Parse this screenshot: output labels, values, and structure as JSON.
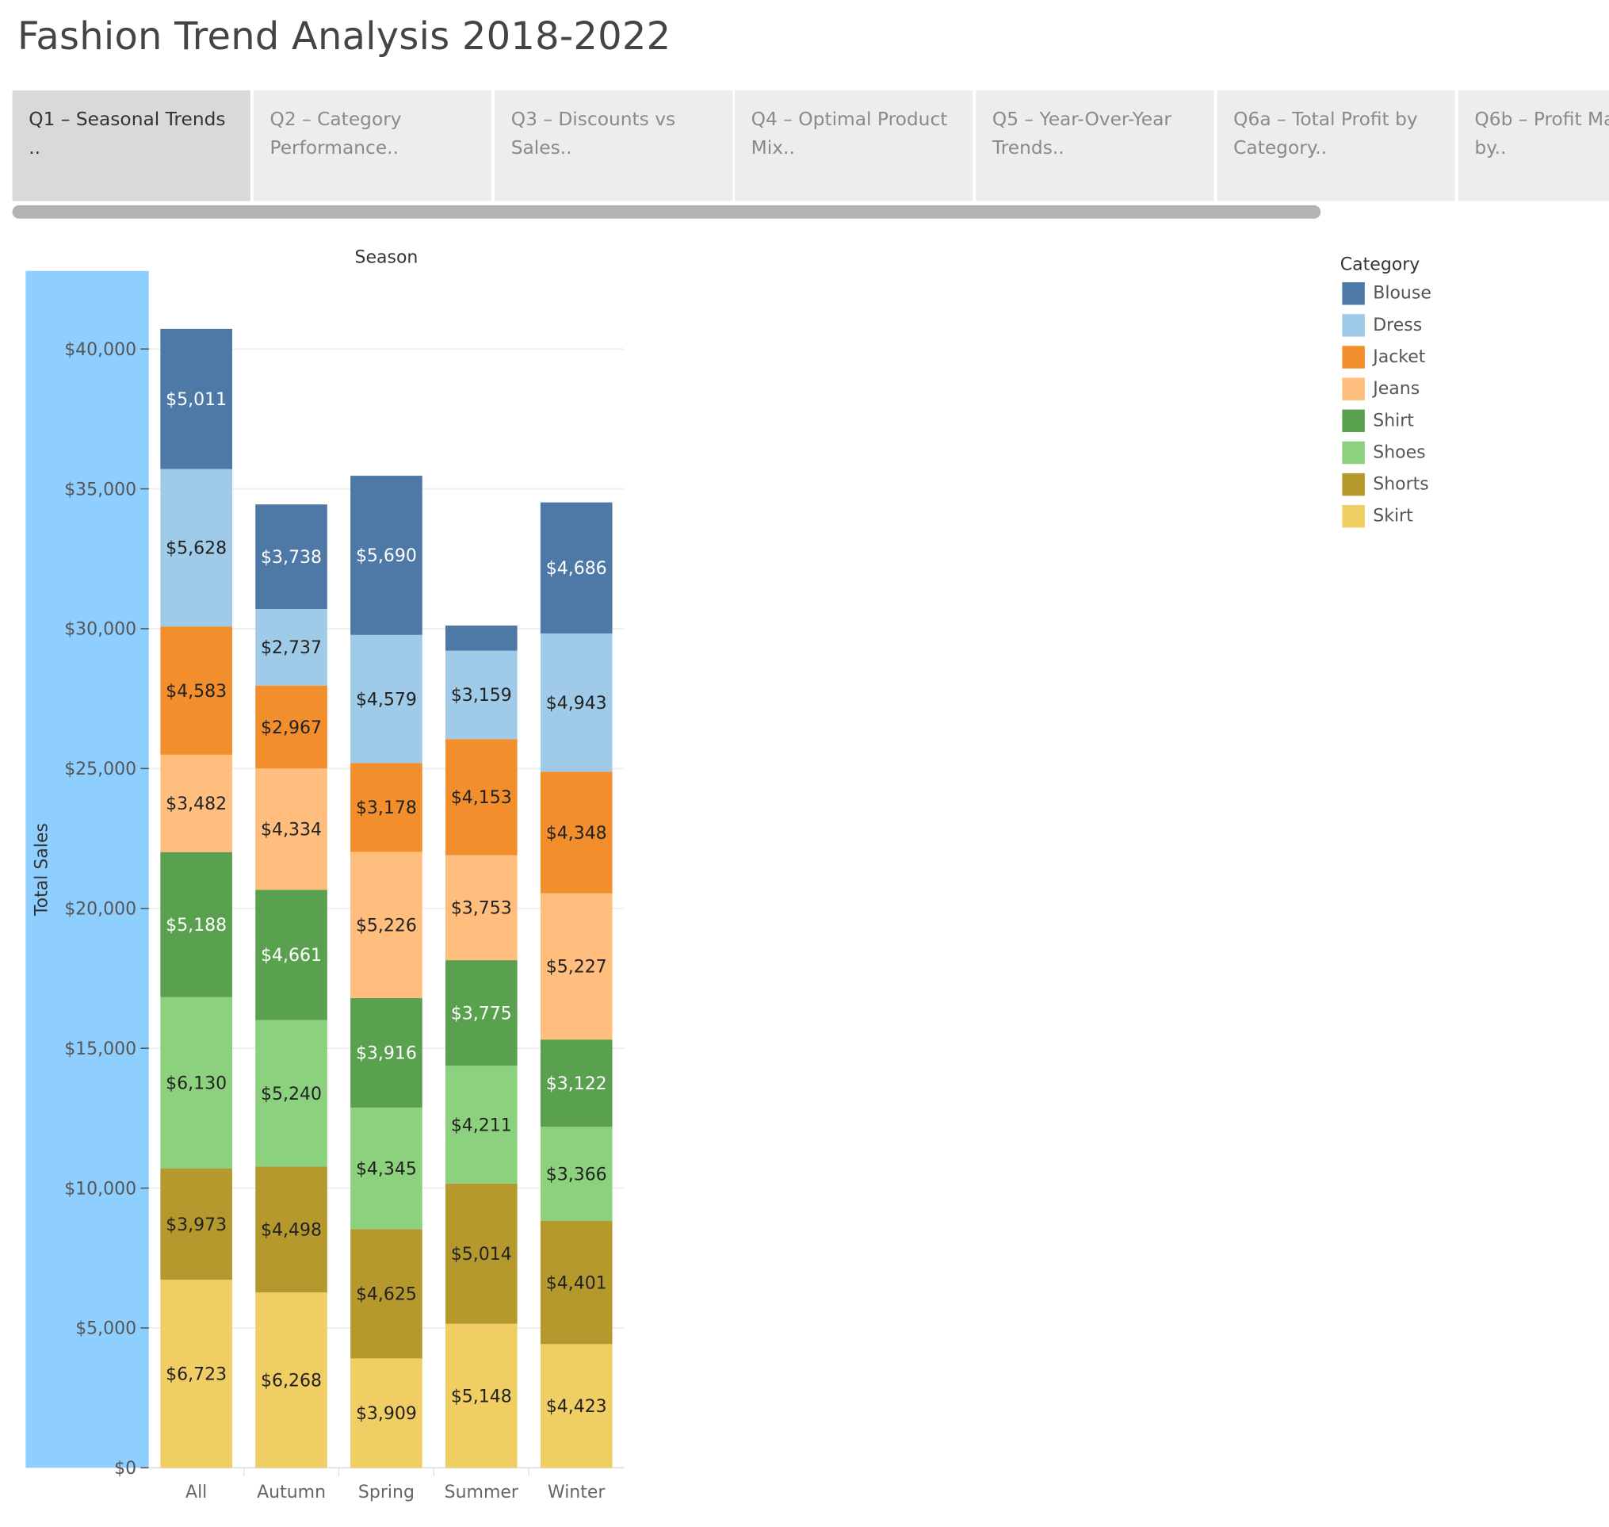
{
  "dashboard": {
    "title": "Fashion Trend Analysis 2018-2022"
  },
  "tabs": [
    {
      "label": "Q1 – Seasonal Trends ..",
      "active": true
    },
    {
      "label": "Q2 – Category Performance..",
      "active": false
    },
    {
      "label": "Q3 – Discounts vs Sales..",
      "active": false
    },
    {
      "label": "Q4 – Optimal Product Mix..",
      "active": false
    },
    {
      "label": "Q5 – Year-Over-Year Trends..",
      "active": false
    },
    {
      "label": "Q6a – Total Profit by Category..",
      "active": false
    },
    {
      "label": "Q6b – Profit Margin % by..",
      "active": false
    }
  ],
  "legend": {
    "title": "Category",
    "items": [
      {
        "label": "Blouse",
        "color": "#4e79a7"
      },
      {
        "label": "Dress",
        "color": "#a0cbe8"
      },
      {
        "label": "Jacket",
        "color": "#f28e2b"
      },
      {
        "label": "Jeans",
        "color": "#ffbe7d"
      },
      {
        "label": "Shirt",
        "color": "#59a14f"
      },
      {
        "label": "Shoes",
        "color": "#8cd17d"
      },
      {
        "label": "Shorts",
        "color": "#b6992d"
      },
      {
        "label": "Skirt",
        "color": "#f1ce63"
      }
    ]
  },
  "chart_data": {
    "type": "bar",
    "stacked": true,
    "title": "",
    "column_header": "Season",
    "xlabel": "",
    "ylabel": "Total Sales",
    "ylim": [
      0,
      40000
    ],
    "yticks": [
      0,
      5000,
      10000,
      15000,
      20000,
      25000,
      30000,
      35000,
      40000
    ],
    "ytick_labels": [
      "$0",
      "$5,000",
      "$10,000",
      "$15,000",
      "$20,000",
      "$25,000",
      "$30,000",
      "$35,000",
      "$40,000"
    ],
    "categories": [
      "All",
      "Autumn",
      "Spring",
      "Summer",
      "Winter"
    ],
    "series": [
      {
        "name": "Skirt",
        "color": "#f1ce63",
        "values": [
          6723,
          6268,
          3909,
          5148,
          4423
        ],
        "labels": [
          "$6,723",
          "$6,268",
          "$3,909",
          "$5,148",
          "$4,423"
        ]
      },
      {
        "name": "Shorts",
        "color": "#b6992d",
        "values": [
          3973,
          4498,
          4625,
          5014,
          4401
        ],
        "labels": [
          "$3,973",
          "$4,498",
          "$4,625",
          "$5,014",
          "$4,401"
        ]
      },
      {
        "name": "Shoes",
        "color": "#8cd17d",
        "values": [
          6130,
          5240,
          4345,
          4211,
          3366
        ],
        "labels": [
          "$6,130",
          "$5,240",
          "$4,345",
          "$4,211",
          "$3,366"
        ]
      },
      {
        "name": "Shirt",
        "color": "#59a14f",
        "values": [
          5188,
          4661,
          3916,
          3775,
          3122
        ],
        "labels": [
          "$5,188",
          "$4,661",
          "$3,916",
          "$3,775",
          "$3,122"
        ]
      },
      {
        "name": "Jeans",
        "color": "#ffbe7d",
        "values": [
          3482,
          4334,
          5226,
          3753,
          5227
        ],
        "labels": [
          "$3,482",
          "$4,334",
          "$5,226",
          "$3,753",
          "$5,227"
        ]
      },
      {
        "name": "Jacket",
        "color": "#f28e2b",
        "values": [
          4583,
          2967,
          3178,
          4153,
          4348
        ],
        "labels": [
          "$4,583",
          "$2,967",
          "$3,178",
          "$4,153",
          "$4,348"
        ]
      },
      {
        "name": "Dress",
        "color": "#a0cbe8",
        "values": [
          5628,
          2737,
          4579,
          3159,
          4943
        ],
        "labels": [
          "$5,628",
          "$2,737",
          "$4,579",
          "$3,159",
          "$4,943"
        ]
      },
      {
        "name": "Blouse",
        "color": "#4e79a7",
        "values": [
          5011,
          3738,
          5690,
          900,
          4686
        ],
        "labels": [
          "$5,011",
          "$3,738",
          "$5,690",
          "",
          "$4,686"
        ]
      }
    ],
    "grid": true,
    "legend_position": "right"
  }
}
